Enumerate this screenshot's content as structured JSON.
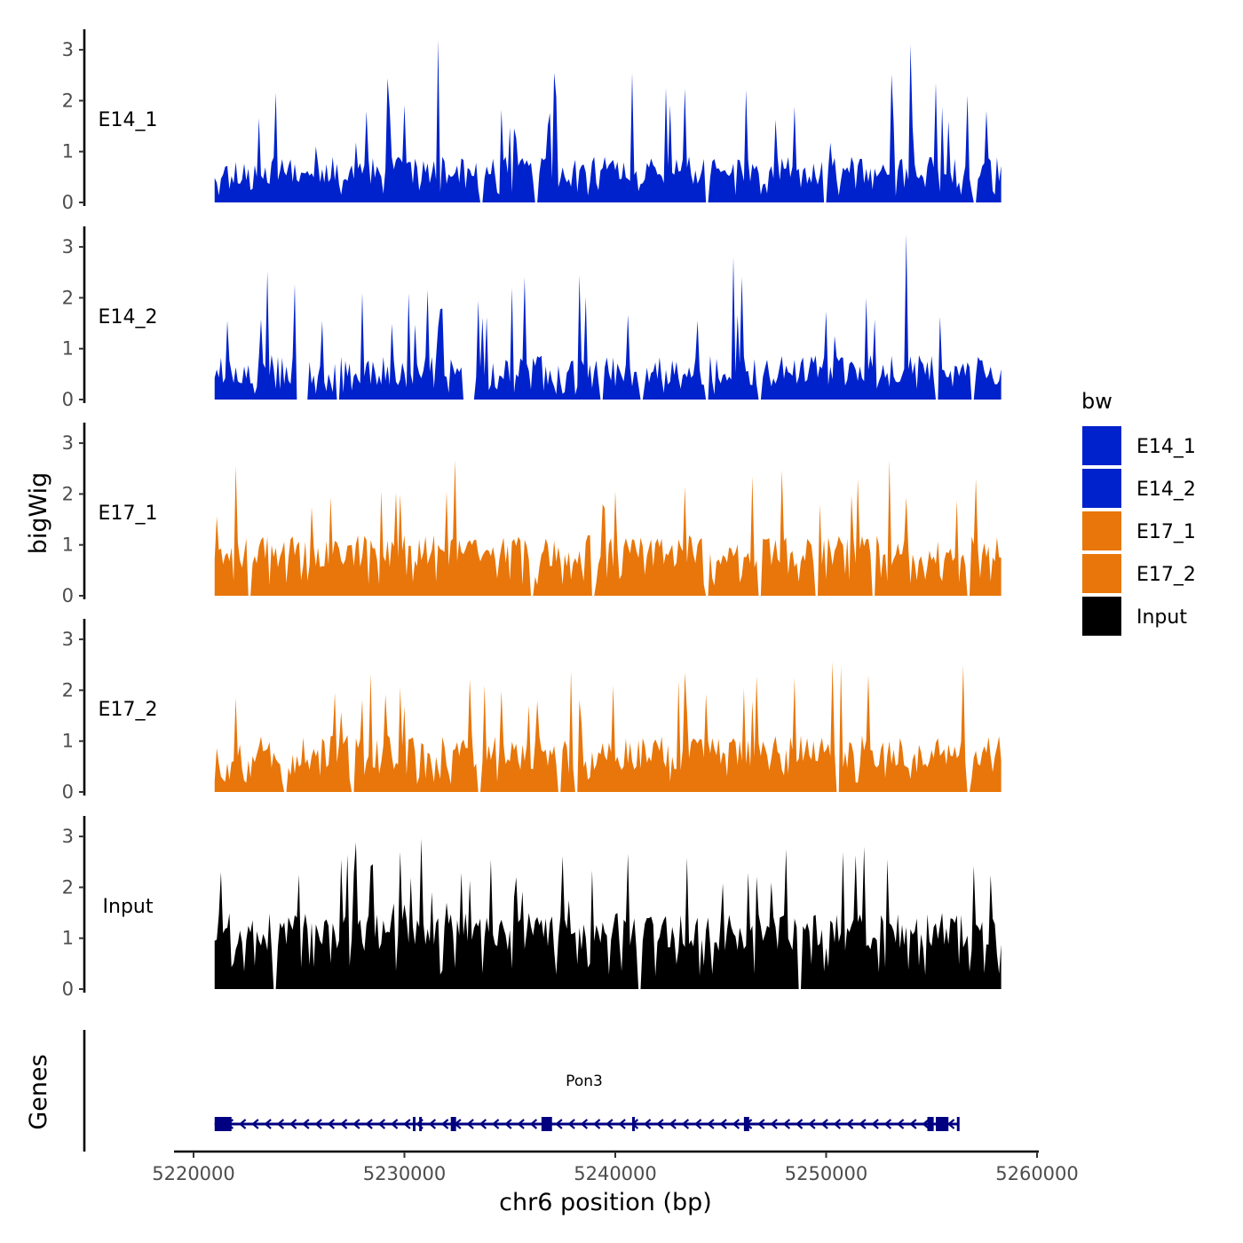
{
  "chart_data": {
    "type": "area",
    "title": "",
    "xlabel": "chr6 position (bp)",
    "ylabel": "bigWig",
    "genes_label": "Genes",
    "xlim": [
      5220000,
      5260000
    ],
    "data_xrange": [
      5221000,
      5258300
    ],
    "xticks": [
      5220000,
      5230000,
      5240000,
      5250000,
      5260000
    ],
    "xtick_labels": [
      "5220000",
      "5230000",
      "5240000",
      "5250000",
      "5260000"
    ],
    "ylim": [
      0,
      3.4
    ],
    "yticks": [
      0,
      1,
      2,
      3
    ],
    "ytick_labels": [
      "0",
      "1",
      "2",
      "3"
    ],
    "legend": {
      "title": "bw",
      "position": "right",
      "entries": [
        {
          "label": "E14_1",
          "color": "#0022cc"
        },
        {
          "label": "E14_2",
          "color": "#0022cc"
        },
        {
          "label": "E17_1",
          "color": "#e8760a"
        },
        {
          "label": "E17_2",
          "color": "#e8760a"
        },
        {
          "label": "Input",
          "color": "#000000"
        }
      ]
    },
    "tracks": [
      {
        "name": "E14_1",
        "color": "#0022cc",
        "seed": 11,
        "base": 0.35,
        "noise": 0.55,
        "peak_prob": 0.09,
        "gaps": [
          [
            5233600,
            5233700
          ],
          [
            5236200,
            5236300
          ],
          [
            5244300,
            5244400
          ],
          [
            5249900,
            5250000
          ],
          [
            5257000,
            5257100
          ]
        ],
        "peaks": [
          [
            5231600,
            3.2
          ],
          [
            5254000,
            3.1
          ],
          [
            5240800,
            2.55
          ],
          [
            5255200,
            2.35
          ],
          [
            5225800,
            1.1
          ]
        ]
      },
      {
        "name": "E14_2",
        "color": "#0022cc",
        "seed": 23,
        "base": 0.28,
        "noise": 0.6,
        "peak_prob": 0.08,
        "gaps": [
          [
            5224900,
            5225400
          ],
          [
            5226800,
            5226900
          ],
          [
            5232800,
            5233300
          ],
          [
            5239300,
            5239400
          ],
          [
            5241200,
            5241300
          ],
          [
            5244300,
            5244400
          ],
          [
            5246800,
            5246900
          ],
          [
            5255200,
            5255300
          ],
          [
            5256900,
            5257000
          ]
        ],
        "peaks": [
          [
            5253800,
            3.25
          ],
          [
            5245600,
            2.8
          ],
          [
            5228000,
            2.1
          ],
          [
            5235100,
            2.2
          ],
          [
            5251900,
            2.0
          ]
        ]
      },
      {
        "name": "E17_1",
        "color": "#e8760a",
        "seed": 37,
        "base": 0.55,
        "noise": 0.65,
        "peak_prob": 0.07,
        "gaps": [
          [
            5222600,
            5222700
          ],
          [
            5236000,
            5236100
          ],
          [
            5238900,
            5239000
          ],
          [
            5244300,
            5244400
          ],
          [
            5246800,
            5246900
          ],
          [
            5249500,
            5249600
          ],
          [
            5252200,
            5252300
          ],
          [
            5256700,
            5256800
          ]
        ],
        "peaks": [
          [
            5246500,
            2.35
          ],
          [
            5251500,
            2.3
          ],
          [
            5257100,
            2.3
          ],
          [
            5243300,
            2.15
          ],
          [
            5229800,
            2.0
          ]
        ]
      },
      {
        "name": "E17_2",
        "color": "#e8760a",
        "seed": 53,
        "base": 0.42,
        "noise": 0.7,
        "peak_prob": 0.08,
        "gaps": [
          [
            5224300,
            5224400
          ],
          [
            5227500,
            5227600
          ],
          [
            5233500,
            5233600
          ],
          [
            5237300,
            5237400
          ],
          [
            5238100,
            5238200
          ],
          [
            5250500,
            5250600
          ],
          [
            5256700,
            5256800
          ]
        ],
        "peaks": [
          [
            5243300,
            2.35
          ],
          [
            5252000,
            2.3
          ],
          [
            5229800,
            2.05
          ],
          [
            5233800,
            2.1
          ],
          [
            5222000,
            1.85
          ]
        ]
      },
      {
        "name": "Input",
        "color": "#000000",
        "seed": 71,
        "base": 0.75,
        "noise": 0.75,
        "peak_prob": 0.1,
        "gaps": [
          [
            5223800,
            5223900
          ],
          [
            5241100,
            5241200
          ],
          [
            5248700,
            5248800
          ]
        ],
        "peaks": [
          [
            5229800,
            2.7
          ],
          [
            5251800,
            2.8
          ],
          [
            5227000,
            2.55
          ],
          [
            5232000,
            1.7
          ],
          [
            5237800,
            1.75
          ]
        ]
      }
    ],
    "gene": {
      "name": "Pon3",
      "color": "#000080",
      "start": 5221000,
      "end": 5256300,
      "strand": "-",
      "exons": [
        [
          5221000,
          5221800
        ],
        [
          5230400,
          5230500
        ],
        [
          5230700,
          5230800
        ],
        [
          5232200,
          5232450
        ],
        [
          5236500,
          5237000
        ],
        [
          5240800,
          5240900
        ],
        [
          5246100,
          5246350
        ],
        [
          5254800,
          5255100
        ],
        [
          5255200,
          5255800
        ],
        [
          5256200,
          5256300
        ]
      ]
    }
  }
}
